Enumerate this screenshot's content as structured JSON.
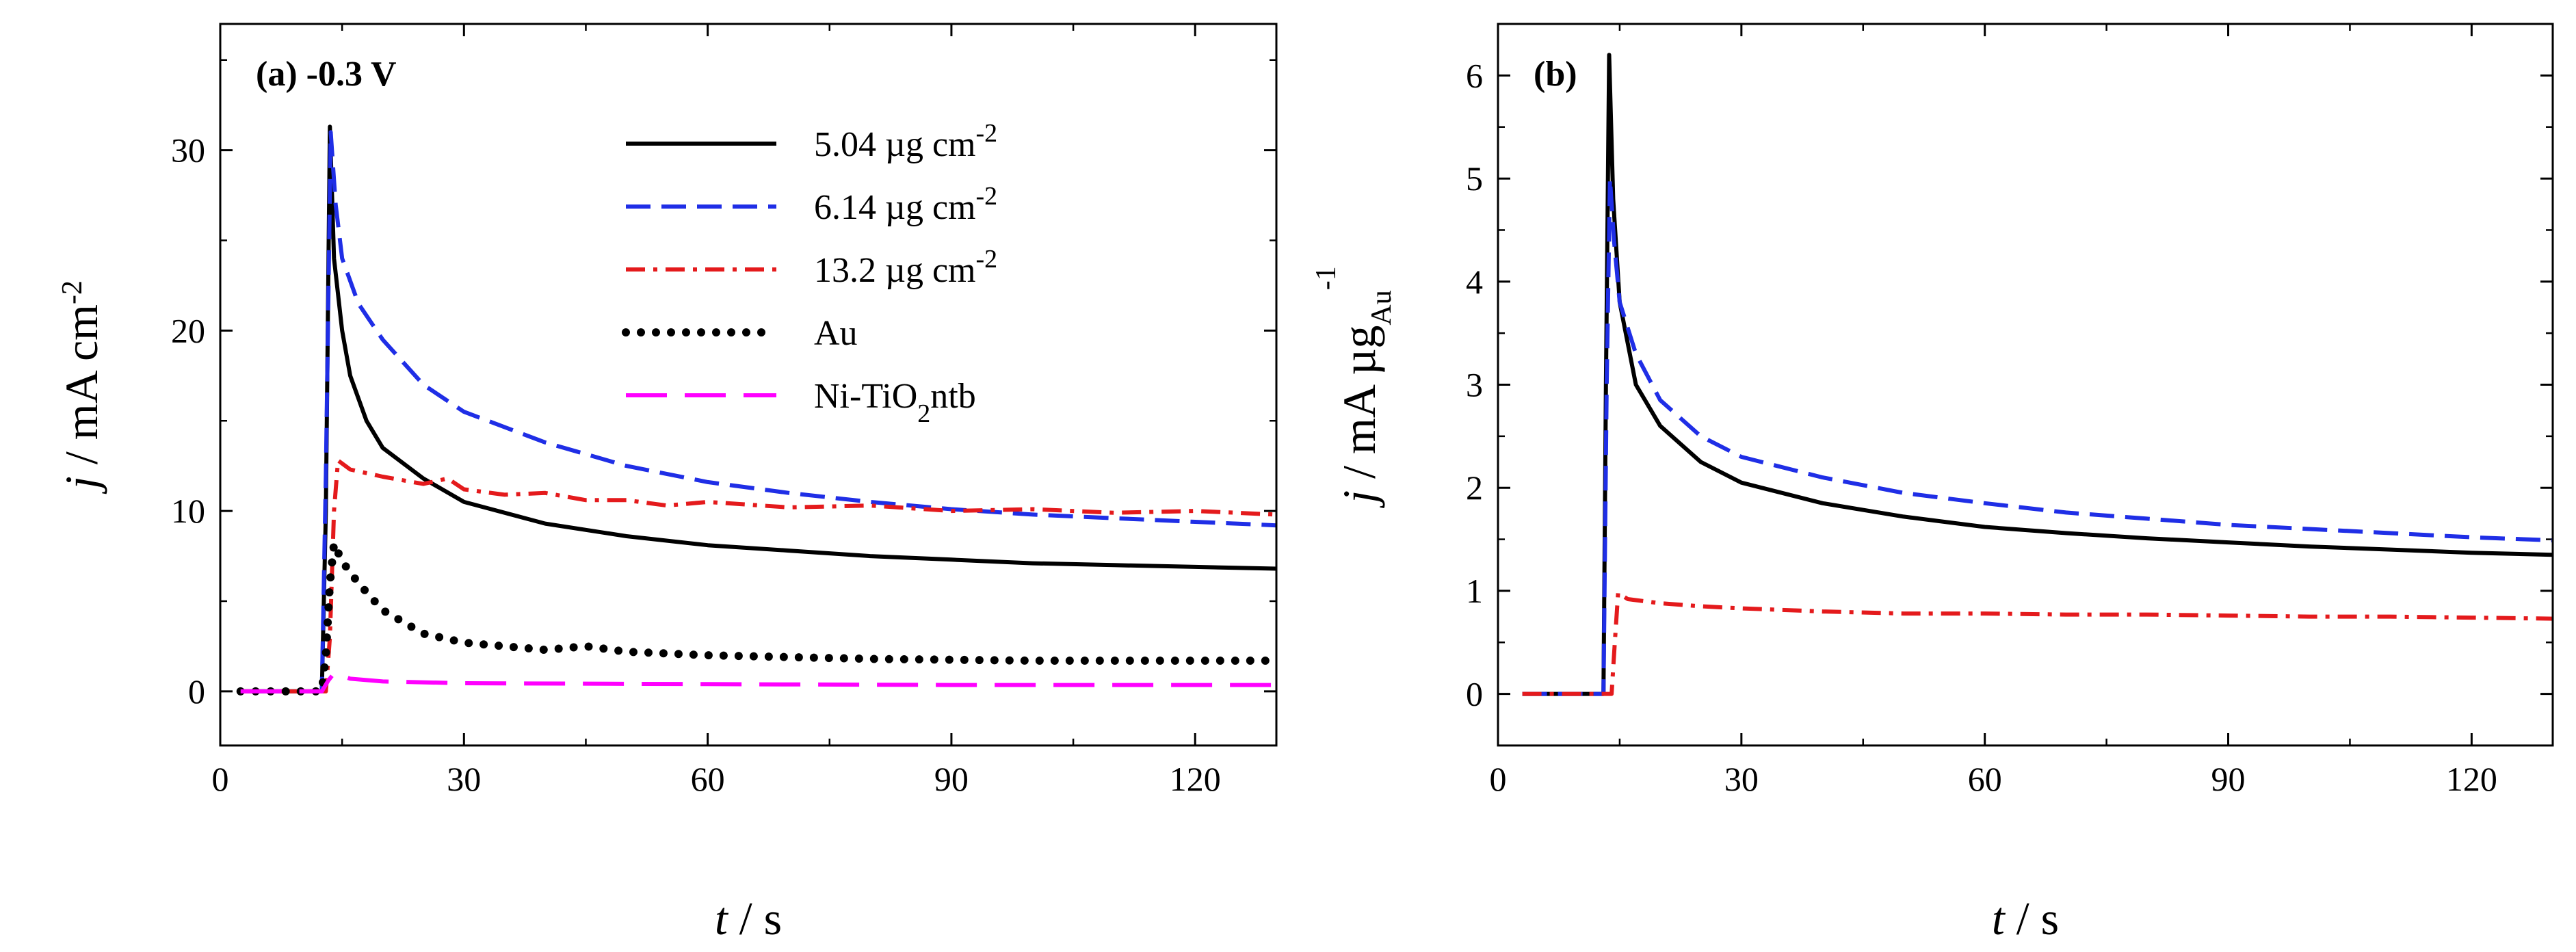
{
  "chart_data": [
    {
      "type": "line",
      "panel": "a",
      "title": "(a) -0.3 V",
      "xlabel": "t / s",
      "xlabel_var": "t",
      "xlabel_unit": " / s",
      "ylabel": "j / mA cm-2",
      "ylabel_var": "j",
      "ylabel_unit": " / mA cm",
      "ylabel_sup": "-2",
      "xlim": [
        0,
        130
      ],
      "ylim": [
        -3,
        37
      ],
      "xticks": [
        "0",
        "30",
        "60",
        "90",
        "120"
      ],
      "yticks": [
        "0",
        "10",
        "20",
        "30"
      ],
      "legend_position": "top-center",
      "series": [
        {
          "name": "5.04 µg cm-2",
          "legend_main": "5.04 µg cm",
          "legend_sup": "-2",
          "color": "#000000",
          "style": "solid",
          "points": [
            [
              2.5,
              0
            ],
            [
              12.5,
              0
            ],
            [
              13,
              10
            ],
            [
              13.5,
              31.3
            ],
            [
              14,
              24
            ],
            [
              15,
              20
            ],
            [
              16,
              17.5
            ],
            [
              18,
              15
            ],
            [
              20,
              13.5
            ],
            [
              25,
              11.8
            ],
            [
              30,
              10.5
            ],
            [
              40,
              9.3
            ],
            [
              50,
              8.6
            ],
            [
              60,
              8.1
            ],
            [
              70,
              7.8
            ],
            [
              80,
              7.5
            ],
            [
              90,
              7.3
            ],
            [
              100,
              7.1
            ],
            [
              110,
              7
            ],
            [
              120,
              6.9
            ],
            [
              130,
              6.8
            ]
          ]
        },
        {
          "name": "6.14 µg cm-2",
          "legend_main": "6.14 µg cm",
          "legend_sup": "-2",
          "color": "#1f2ee6",
          "style": "dashed",
          "points": [
            [
              2.5,
              0
            ],
            [
              12.5,
              0
            ],
            [
              13,
              12
            ],
            [
              13.6,
              31
            ],
            [
              14.2,
              27
            ],
            [
              15,
              24
            ],
            [
              17,
              21.5
            ],
            [
              20,
              19.5
            ],
            [
              25,
              17
            ],
            [
              30,
              15.5
            ],
            [
              40,
              13.8
            ],
            [
              50,
              12.5
            ],
            [
              60,
              11.6
            ],
            [
              70,
              11
            ],
            [
              80,
              10.5
            ],
            [
              90,
              10.1
            ],
            [
              100,
              9.8
            ],
            [
              110,
              9.6
            ],
            [
              120,
              9.4
            ],
            [
              130,
              9.2
            ]
          ]
        },
        {
          "name": "13.2 µg cm-2",
          "legend_main": "13.2 µg cm",
          "legend_sup": "-2",
          "color": "#e41a1c",
          "style": "dashdot",
          "points": [
            [
              2.5,
              0
            ],
            [
              13,
              0
            ],
            [
              13.5,
              3
            ],
            [
              14,
              10
            ],
            [
              14.5,
              12.8
            ],
            [
              16,
              12.3
            ],
            [
              20,
              11.9
            ],
            [
              25,
              11.5
            ],
            [
              28,
              11.8
            ],
            [
              30,
              11.2
            ],
            [
              35,
              10.9
            ],
            [
              40,
              11
            ],
            [
              45,
              10.6
            ],
            [
              50,
              10.6
            ],
            [
              55,
              10.3
            ],
            [
              60,
              10.5
            ],
            [
              70,
              10.2
            ],
            [
              80,
              10.3
            ],
            [
              90,
              10
            ],
            [
              100,
              10.1
            ],
            [
              110,
              9.9
            ],
            [
              120,
              10
            ],
            [
              130,
              9.8
            ]
          ]
        },
        {
          "name": "Au",
          "legend_main": "Au",
          "legend_sup": "",
          "color": "#000000",
          "style": "dotted",
          "points": [
            [
              2.5,
              0
            ],
            [
              12.5,
              0
            ],
            [
              13,
              2
            ],
            [
              13.5,
              6
            ],
            [
              14,
              8.2
            ],
            [
              15,
              7.2
            ],
            [
              17,
              6
            ],
            [
              20,
              4.5
            ],
            [
              25,
              3.2
            ],
            [
              30,
              2.7
            ],
            [
              40,
              2.3
            ],
            [
              45,
              2.5
            ],
            [
              50,
              2.2
            ],
            [
              60,
              2
            ],
            [
              70,
              1.9
            ],
            [
              80,
              1.8
            ],
            [
              90,
              1.75
            ],
            [
              100,
              1.7
            ],
            [
              110,
              1.7
            ],
            [
              120,
              1.7
            ],
            [
              130,
              1.7
            ]
          ]
        },
        {
          "name": "Ni-TiO2ntb",
          "legend_main": "Ni-TiO",
          "legend_sub": "2",
          "legend_tail": "ntb",
          "color": "#ff00ff",
          "style": "longdash",
          "points": [
            [
              2.5,
              0
            ],
            [
              12.5,
              0
            ],
            [
              13.3,
              0.6
            ],
            [
              14,
              1
            ],
            [
              16,
              0.7
            ],
            [
              20,
              0.55
            ],
            [
              30,
              0.45
            ],
            [
              60,
              0.4
            ],
            [
              90,
              0.35
            ],
            [
              130,
              0.35
            ]
          ]
        }
      ]
    },
    {
      "type": "line",
      "panel": "b",
      "title": "(b)",
      "xlabel": "t / s",
      "xlabel_var": "t",
      "xlabel_unit": " / s",
      "ylabel": "j / mA µgAu-1",
      "ylabel_var": "j",
      "ylabel_unit": " / mA µg",
      "ylabel_sub": "Au",
      "ylabel_sup": "-1",
      "xlim": [
        0,
        130
      ],
      "ylim": [
        -0.5,
        6.5
      ],
      "xticks": [
        "0",
        "30",
        "60",
        "90",
        "120"
      ],
      "yticks": [
        "0",
        "1",
        "2",
        "3",
        "4",
        "5",
        "6"
      ],
      "series": [
        {
          "name": "5.04 µg cm-2",
          "color": "#000000",
          "style": "solid",
          "points": [
            [
              3,
              0
            ],
            [
              13,
              0
            ],
            [
              13.3,
              3
            ],
            [
              13.7,
              6.2
            ],
            [
              14.2,
              4.8
            ],
            [
              15,
              3.8
            ],
            [
              17,
              3
            ],
            [
              20,
              2.6
            ],
            [
              25,
              2.25
            ],
            [
              30,
              2.05
            ],
            [
              40,
              1.85
            ],
            [
              50,
              1.72
            ],
            [
              60,
              1.62
            ],
            [
              70,
              1.56
            ],
            [
              80,
              1.51
            ],
            [
              90,
              1.47
            ],
            [
              100,
              1.43
            ],
            [
              110,
              1.4
            ],
            [
              120,
              1.37
            ],
            [
              130,
              1.35
            ]
          ]
        },
        {
          "name": "6.14 µg cm-2",
          "color": "#1f2ee6",
          "style": "dashed",
          "points": [
            [
              3,
              0
            ],
            [
              13,
              0
            ],
            [
              13.4,
              3
            ],
            [
              13.8,
              5
            ],
            [
              14.3,
              4.4
            ],
            [
              15,
              3.8
            ],
            [
              17,
              3.3
            ],
            [
              20,
              2.85
            ],
            [
              25,
              2.5
            ],
            [
              30,
              2.3
            ],
            [
              40,
              2.1
            ],
            [
              50,
              1.95
            ],
            [
              60,
              1.85
            ],
            [
              70,
              1.76
            ],
            [
              80,
              1.7
            ],
            [
              90,
              1.64
            ],
            [
              100,
              1.6
            ],
            [
              110,
              1.56
            ],
            [
              120,
              1.52
            ],
            [
              130,
              1.49
            ]
          ]
        },
        {
          "name": "13.2 µg cm-2",
          "color": "#e41a1c",
          "style": "dashdot",
          "points": [
            [
              3,
              0
            ],
            [
              14,
              0
            ],
            [
              14.4,
              0.5
            ],
            [
              14.8,
              0.98
            ],
            [
              16,
              0.92
            ],
            [
              20,
              0.88
            ],
            [
              25,
              0.85
            ],
            [
              30,
              0.83
            ],
            [
              40,
              0.8
            ],
            [
              50,
              0.78
            ],
            [
              60,
              0.78
            ],
            [
              70,
              0.77
            ],
            [
              80,
              0.77
            ],
            [
              90,
              0.76
            ],
            [
              100,
              0.75
            ],
            [
              110,
              0.75
            ],
            [
              120,
              0.74
            ],
            [
              130,
              0.73
            ]
          ]
        }
      ]
    }
  ]
}
